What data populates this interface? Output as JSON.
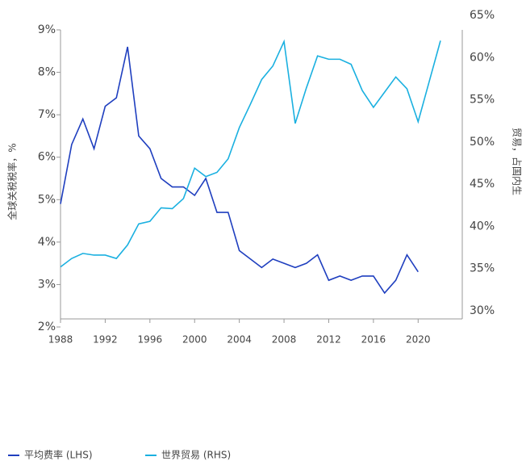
{
  "chart_data": {
    "type": "line",
    "y_label": "全球关税税率，%",
    "y2_label": "贸易，占国内生",
    "x": [
      1988,
      1989,
      1990,
      1991,
      1992,
      1993,
      1994,
      1995,
      1996,
      1997,
      1998,
      1999,
      2000,
      2001,
      2002,
      2003,
      2004,
      2005,
      2006,
      2007,
      2008,
      2009,
      2010,
      2011,
      2012,
      2013,
      2014,
      2015,
      2016,
      2017,
      2018,
      2019,
      2020,
      2021,
      2022
    ],
    "series": [
      {
        "name": "平均费率 (LHS)",
        "color": "#1f3fbf",
        "axis": "y",
        "values": [
          4.9,
          6.3,
          6.9,
          6.2,
          7.2,
          7.4,
          8.6,
          6.5,
          6.2,
          5.5,
          5.3,
          5.3,
          5.1,
          5.5,
          4.7,
          4.7,
          3.8,
          3.6,
          3.4,
          3.6,
          3.5,
          3.4,
          3.5,
          3.7,
          3.1,
          3.2,
          3.1,
          3.2,
          3.2,
          2.8,
          3.1,
          3.7,
          3.3,
          null,
          null
        ]
      },
      {
        "name": "世界贸易 (RHS)",
        "color": "#1ab0e0",
        "axis": "y2",
        "values": [
          35.2,
          36.2,
          36.8,
          36.6,
          36.6,
          36.2,
          37.8,
          40.3,
          40.6,
          42.2,
          42.1,
          43.3,
          46.9,
          45.9,
          46.4,
          48.0,
          51.7,
          54.5,
          57.4,
          59.0,
          61.9,
          52.2,
          56.4,
          60.2,
          59.8,
          59.8,
          59.2,
          56.1,
          54.1,
          55.9,
          57.7,
          56.3,
          52.4,
          57.2,
          62.0
        ]
      }
    ],
    "xticks": [
      1988,
      1992,
      1996,
      2000,
      2004,
      2008,
      2012,
      2016,
      2020
    ],
    "ylim": [
      2,
      9
    ],
    "yticks": [
      {
        "value": 2,
        "label": "2%"
      },
      {
        "value": 3,
        "label": "3%"
      },
      {
        "value": 4,
        "label": "4%"
      },
      {
        "value": 5,
        "label": "5%"
      },
      {
        "value": 6,
        "label": "6%"
      },
      {
        "value": 7,
        "label": "7%"
      },
      {
        "value": 8,
        "label": "8%"
      },
      {
        "value": 9,
        "label": "9%"
      }
    ],
    "y2lim": [
      30,
      65
    ],
    "y2ticks": [
      {
        "value": 30,
        "label": "30%"
      },
      {
        "value": 35,
        "label": "35%"
      },
      {
        "value": 40,
        "label": "40%"
      },
      {
        "value": 45,
        "label": "45%"
      },
      {
        "value": 50,
        "label": "50%"
      },
      {
        "value": 55,
        "label": "55%"
      },
      {
        "value": 60,
        "label": "60%"
      },
      {
        "value": 65,
        "label": "65%"
      }
    ]
  }
}
